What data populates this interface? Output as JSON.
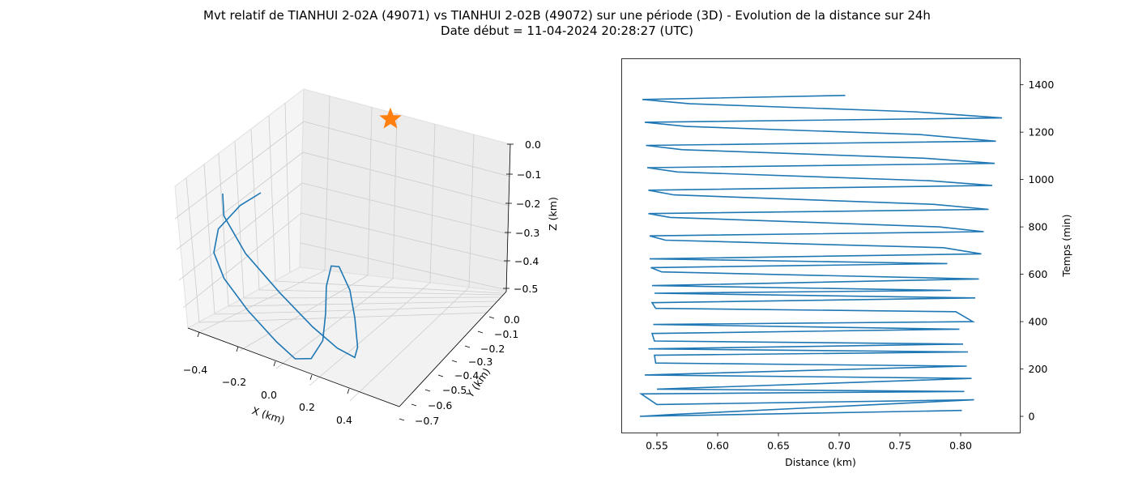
{
  "title": {
    "line1": "Mvt relatif de TIANHUI 2-02A (49071) vs TIANHUI 2-02B (49072) sur une période (3D) - Evolution de la distance sur 24h",
    "line2": "Date début = 11-04-2024 20:28:27 (UTC)"
  },
  "colors": {
    "series": "#1f77b4",
    "marker": "#ff7f0e",
    "pane": "#f2f2f2",
    "grid": "#cccccc"
  },
  "chart_data": [
    {
      "type": "line3d",
      "xlabel": "X (km)",
      "ylabel": "Y (km)",
      "zlabel": "Z (km)",
      "xlim": [
        -0.5,
        0.55
      ],
      "ylim": [
        -0.72,
        0.02
      ],
      "zlim": [
        -0.52,
        0.02
      ],
      "xticks": [
        "−0.4",
        "−0.2",
        "0.0",
        "0.2",
        "0.4"
      ],
      "yticks": [
        "0.0",
        "−0.1",
        "−0.2",
        "−0.3",
        "−0.4",
        "−0.5",
        "−0.6",
        "−0.7"
      ],
      "zticks": [
        "0.0",
        "−0.1",
        "−0.2",
        "−0.3",
        "−0.4",
        "−0.5"
      ],
      "grid": true,
      "series": [
        {
          "points": [
            [
              0.0,
              0.0,
              -0.06
            ],
            [
              -0.14,
              -0.05,
              -0.12
            ],
            [
              -0.33,
              -0.18,
              -0.2
            ],
            [
              -0.45,
              -0.35,
              -0.25
            ],
            [
              -0.48,
              -0.5,
              -0.3
            ],
            [
              -0.42,
              -0.62,
              -0.37
            ],
            [
              -0.3,
              -0.68,
              -0.45
            ],
            [
              -0.2,
              -0.68,
              -0.5
            ],
            [
              -0.08,
              -0.62,
              -0.5
            ],
            [
              0.05,
              -0.5,
              -0.45
            ],
            [
              0.15,
              -0.35,
              -0.38
            ],
            [
              0.25,
              -0.18,
              -0.32
            ],
            [
              0.35,
              -0.05,
              -0.27
            ],
            [
              0.42,
              0.0,
              -0.28
            ],
            [
              0.45,
              -0.05,
              -0.35
            ],
            [
              0.42,
              -0.15,
              -0.43
            ],
            [
              0.35,
              -0.3,
              -0.5
            ],
            [
              0.25,
              -0.45,
              -0.5
            ],
            [
              0.1,
              -0.55,
              -0.45
            ],
            [
              -0.05,
              -0.58,
              -0.38
            ],
            [
              -0.18,
              -0.5,
              -0.3
            ],
            [
              -0.28,
              -0.35,
              -0.22
            ],
            [
              -0.3,
              -0.18,
              -0.14
            ],
            [
              -0.25,
              -0.08,
              -0.08
            ]
          ]
        }
      ],
      "marker": {
        "shape": "star",
        "point": [
          0.0,
          0.0,
          0.0
        ]
      }
    },
    {
      "type": "line",
      "xlabel": "Distance (km)",
      "ylabel": "Temps (min)",
      "xlim": [
        0.521,
        0.849
      ],
      "ylim": [
        -70,
        1510
      ],
      "xticks": [
        "0.55",
        "0.60",
        "0.65",
        "0.70",
        "0.75",
        "0.80"
      ],
      "yticks": [
        "0",
        "200",
        "400",
        "600",
        "800",
        "1000",
        "1200",
        "1400"
      ],
      "grid": false,
      "series": [
        {
          "x": [
            0.801,
            0.536,
            0.563,
            0.811,
            0.55,
            0.537,
            0.803,
            0.55,
            0.809,
            0.54,
            0.805,
            0.549,
            0.548,
            0.806,
            0.543,
            0.802,
            0.548,
            0.546,
            0.799,
            0.547,
            0.81,
            0.796,
            0.549,
            0.546,
            0.812,
            0.548,
            0.792,
            0.546,
            0.815,
            0.554,
            0.545,
            0.789,
            0.544,
            0.817,
            0.786,
            0.557,
            0.544,
            0.819,
            0.782,
            0.561,
            0.543,
            0.823,
            0.778,
            0.564,
            0.543,
            0.826,
            0.774,
            0.567,
            0.542,
            0.828,
            0.77,
            0.571,
            0.541,
            0.829,
            0.766,
            0.574,
            0.54,
            0.834,
            0.762,
            0.577,
            0.538,
            0.705
          ],
          "y": [
            25,
            0,
            8,
            70,
            50,
            95,
            105,
            115,
            160,
            175,
            212,
            225,
            258,
            272,
            285,
            305,
            318,
            350,
            368,
            388,
            400,
            442,
            456,
            480,
            500,
            520,
            532,
            552,
            580,
            610,
            628,
            645,
            665,
            686,
            712,
            744,
            762,
            780,
            800,
            840,
            856,
            874,
            895,
            935,
            955,
            975,
            995,
            1032,
            1050,
            1068,
            1090,
            1126,
            1144,
            1162,
            1190,
            1224,
            1242,
            1260,
            1286,
            1320,
            1338,
            1355
          ]
        }
      ]
    }
  ]
}
